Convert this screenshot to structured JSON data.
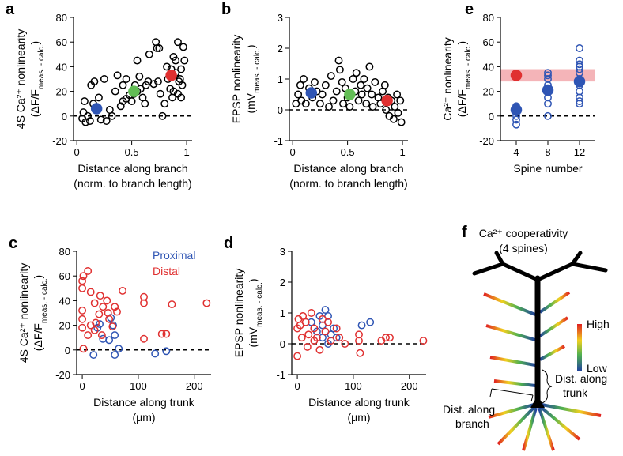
{
  "chart_data": [
    {
      "type": "scatter",
      "panel": "a",
      "ylabel": [
        [
          "4S Ca²⁺ nonlinearity"
        ],
        [
          "(ΔF/F",
          "meas. - calc.",
          ")"
        ]
      ],
      "xlabel": [
        "Distance along branch",
        "(norm. to branch length)"
      ],
      "xlim": [
        -0.03,
        1.05
      ],
      "xticks": [
        0,
        0.5,
        1
      ],
      "ylim": [
        -20,
        80
      ],
      "yticks": [
        -20,
        0,
        20,
        40,
        60,
        80
      ],
      "hline": 0,
      "series": [
        {
          "color": "#000000",
          "filled": false,
          "x": [
            0.05,
            0.06,
            0.07,
            0.08,
            0.1,
            0.12,
            0.13,
            0.15,
            0.16,
            0.18,
            0.2,
            0.22,
            0.25,
            0.27,
            0.3,
            0.32,
            0.35,
            0.37,
            0.4,
            0.42,
            0.42,
            0.45,
            0.45,
            0.48,
            0.5,
            0.52,
            0.53,
            0.55,
            0.55,
            0.57,
            0.58,
            0.6,
            0.62,
            0.63,
            0.65,
            0.66,
            0.7,
            0.72,
            0.73,
            0.75,
            0.74,
            0.76,
            0.78,
            0.8,
            0.82,
            0.83,
            0.85,
            0.86,
            0.87,
            0.88,
            0.88,
            0.9,
            0.9,
            0.92,
            0.92,
            0.93,
            0.94,
            0.95,
            0.95,
            0.96,
            0.97,
            0.98
          ],
          "values": [
            -2,
            3,
            12,
            -5,
            0,
            -4,
            25,
            10,
            28,
            5,
            15,
            -3,
            30,
            -4,
            5,
            0,
            20,
            33,
            8,
            25,
            12,
            30,
            14,
            17,
            12,
            18,
            25,
            45,
            20,
            32,
            22,
            15,
            10,
            25,
            28,
            50,
            26,
            60,
            55,
            55,
            28,
            18,
            0,
            10,
            40,
            30,
            22,
            38,
            15,
            20,
            48,
            35,
            45,
            60,
            18,
            28,
            30,
            38,
            15,
            25,
            56,
            45
          ]
        },
        {
          "color": "#2f55b4",
          "filled": true,
          "x": [
            0.18
          ],
          "values": [
            6
          ]
        },
        {
          "color": "#62bd55",
          "filled": true,
          "x": [
            0.52
          ],
          "values": [
            20
          ]
        },
        {
          "color": "#e03030",
          "filled": true,
          "x": [
            0.86
          ],
          "values": [
            33
          ]
        }
      ]
    },
    {
      "type": "scatter",
      "panel": "b",
      "ylabel": [
        [
          "EPSP nonlinearity"
        ],
        [
          "(mV",
          "meas. - calc.",
          ")"
        ]
      ],
      "xlabel": [
        "Distance along branch",
        "(norm. to branch length)"
      ],
      "xlim": [
        -0.03,
        1.05
      ],
      "xticks": [
        0,
        0.5,
        1
      ],
      "ylim": [
        -1,
        3
      ],
      "yticks": [
        -1,
        0,
        1,
        2,
        3
      ],
      "hline": 0,
      "series": [
        {
          "color": "#000000",
          "filled": false,
          "x": [
            0.03,
            0.05,
            0.07,
            0.08,
            0.1,
            0.12,
            0.15,
            0.18,
            0.2,
            0.22,
            0.25,
            0.27,
            0.3,
            0.33,
            0.35,
            0.37,
            0.4,
            0.42,
            0.43,
            0.45,
            0.46,
            0.48,
            0.5,
            0.52,
            0.55,
            0.57,
            0.58,
            0.6,
            0.62,
            0.63,
            0.65,
            0.67,
            0.68,
            0.7,
            0.72,
            0.73,
            0.75,
            0.78,
            0.8,
            0.82,
            0.84,
            0.85,
            0.87,
            0.88,
            0.9,
            0.92,
            0.93,
            0.95,
            0.96,
            0.98,
            0.99
          ],
          "values": [
            0.2,
            0.5,
            0.8,
            0.3,
            1.0,
            0.2,
            0.7,
            0.4,
            0.9,
            0.6,
            0.2,
            0.5,
            0.8,
            0.1,
            1.1,
            0.3,
            0.6,
            1.6,
            1.3,
            0.9,
            0.2,
            0.7,
            0.4,
            0.1,
            1.0,
            0.6,
            1.2,
            0.3,
            0.8,
            0.5,
            1.0,
            0.2,
            0.7,
            1.4,
            0.5,
            0.1,
            0.9,
            0.4,
            0.2,
            0.6,
            0.8,
            0.0,
            0.4,
            -0.2,
            0.3,
            -0.3,
            0.1,
            0.5,
            -0.1,
            0.3,
            -0.4
          ]
        },
        {
          "color": "#2f55b4",
          "filled": true,
          "x": [
            0.17
          ],
          "values": [
            0.55
          ]
        },
        {
          "color": "#62bd55",
          "filled": true,
          "x": [
            0.52
          ],
          "values": [
            0.5
          ]
        },
        {
          "color": "#e03030",
          "filled": true,
          "x": [
            0.86
          ],
          "values": [
            0.3
          ]
        }
      ]
    },
    {
      "type": "scatter",
      "panel": "e",
      "ylabel": [
        [
          "Ca²⁺ nonlinearity"
        ],
        [
          "(ΔF/F",
          "meas. - calc.",
          ")"
        ]
      ],
      "xlabel": [
        "Spine number"
      ],
      "xlim": [
        2,
        14
      ],
      "xticks": [
        4,
        8,
        12
      ],
      "ylim": [
        -20,
        80
      ],
      "yticks": [
        -20,
        0,
        20,
        40,
        60,
        80
      ],
      "hline": 0,
      "band": [
        28,
        38
      ],
      "band_color": "#f2a7ab",
      "series": [
        {
          "color": "#2f55b4",
          "filled": false,
          "x": [
            4,
            4,
            4,
            4,
            4,
            4,
            4,
            8,
            8,
            8,
            8,
            8,
            8,
            8,
            8,
            8,
            12,
            12,
            12,
            12,
            12,
            12,
            12,
            12,
            12,
            12,
            12,
            12,
            12
          ],
          "values": [
            5,
            3,
            0,
            -3,
            -7,
            7,
            8,
            20,
            22,
            25,
            30,
            33,
            35,
            15,
            10,
            0,
            55,
            45,
            42,
            40,
            38,
            35,
            30,
            28,
            25,
            20,
            15,
            12,
            10
          ]
        },
        {
          "color": "#2f55b4",
          "filled": true,
          "x": [
            4,
            8,
            12
          ],
          "values": [
            5,
            21,
            28
          ]
        },
        {
          "color": "#e03030",
          "filled": true,
          "x": [
            4
          ],
          "values": [
            33
          ]
        }
      ]
    },
    {
      "type": "scatter",
      "panel": "c",
      "ylabel": [
        [
          "4S Ca²⁺ nonlinearity"
        ],
        [
          "(ΔF/F",
          "meas. - calc.",
          ")"
        ]
      ],
      "xlabel": [
        "Distance along trunk",
        "(μm)"
      ],
      "xlim": [
        -10,
        230
      ],
      "xticks": [
        0,
        100,
        200
      ],
      "ylim": [
        -20,
        80
      ],
      "yticks": [
        -20,
        0,
        20,
        40,
        60,
        80
      ],
      "hline": 0,
      "legend": "upper right",
      "series": [
        {
          "name": "Proximal",
          "color": "#2f55b4",
          "filled": false,
          "x": [
            27,
            37,
            48,
            55,
            58,
            65,
            58,
            20,
            130,
            150,
            31,
            51
          ],
          "values": [
            18,
            9,
            8,
            20,
            12,
            1,
            -4,
            -4,
            -3,
            -1,
            21,
            26
          ]
        },
        {
          "name": "Distal",
          "color": "#e03030",
          "filled": false,
          "x": [
            0,
            0,
            2,
            10,
            0,
            0,
            0,
            2,
            15,
            22,
            32,
            30,
            37,
            44,
            46,
            15,
            22,
            48,
            54,
            62,
            72,
            110,
            110,
            110,
            142,
            150,
            160,
            222,
            10,
            24,
            35,
            58
          ],
          "values": [
            56,
            50,
            60,
            64,
            32,
            25,
            18,
            1,
            47,
            38,
            44,
            29,
            35,
            40,
            30,
            20,
            16,
            25,
            19,
            31,
            48,
            43,
            38,
            9,
            13,
            13,
            37,
            38,
            12,
            22,
            12,
            35
          ]
        }
      ]
    },
    {
      "type": "scatter",
      "panel": "d",
      "ylabel": [
        [
          "EPSP nonlinearity"
        ],
        [
          "(mV",
          "meas. - calc.",
          ")"
        ]
      ],
      "xlabel": [
        "Distance along trunk",
        "(μm)"
      ],
      "xlim": [
        -10,
        230
      ],
      "xticks": [
        0,
        100,
        200
      ],
      "ylim": [
        -1,
        3
      ],
      "yticks": [
        -1,
        0,
        1,
        2,
        3
      ],
      "hline": 0,
      "series": [
        {
          "color": "#2f55b4",
          "filled": false,
          "x": [
            25,
            35,
            40,
            45,
            50,
            55,
            60,
            65,
            70,
            55,
            45,
            115,
            130
          ],
          "values": [
            0.7,
            0.4,
            0.9,
            0.6,
            1.1,
            0.9,
            0.3,
            0.5,
            0.2,
            0.0,
            0.2,
            0.6,
            0.7
          ]
        },
        {
          "color": "#e03030",
          "filled": false,
          "x": [
            0,
            2,
            5,
            10,
            15,
            20,
            25,
            30,
            35,
            40,
            45,
            50,
            55,
            60,
            70,
            75,
            85,
            110,
            110,
            112,
            150,
            158,
            165,
            225,
            0,
            8,
            18,
            30
          ],
          "values": [
            0.5,
            0.8,
            0.6,
            0.9,
            0.7,
            0.3,
            1.0,
            0.5,
            0.2,
            -0.2,
            0.8,
            0.4,
            0.7,
            0.1,
            0.5,
            0.2,
            0.0,
            0.3,
            0.1,
            -0.3,
            0.1,
            0.2,
            0.2,
            0.1,
            -0.4,
            0.2,
            -0.1,
            0.1
          ]
        }
      ]
    }
  ],
  "diagram": {
    "panel": "f",
    "title": [
      "Ca²⁺ cooperativity",
      "(4 spines)"
    ],
    "scale_high": "High",
    "scale_low": "Low",
    "trunk_label": [
      "Dist. along",
      "trunk"
    ],
    "branch_label": [
      "Dist. along",
      "branch"
    ]
  }
}
